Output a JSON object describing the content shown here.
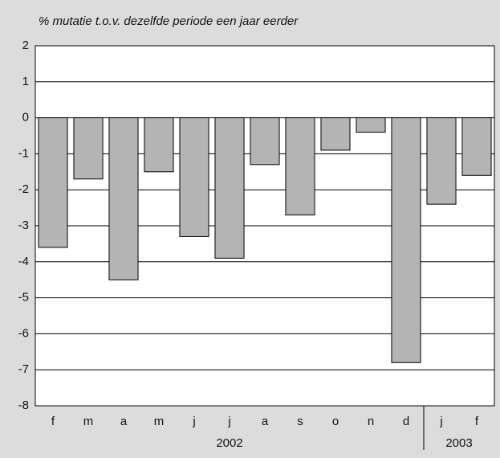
{
  "chart_data": {
    "type": "bar",
    "subtitle": "% mutatie t.o.v. dezelfde periode een jaar eerder",
    "categories": [
      "f",
      "m",
      "a",
      "m",
      "j",
      "j",
      "a",
      "s",
      "o",
      "n",
      "d",
      "j",
      "f"
    ],
    "values": [
      -3.6,
      -1.7,
      -4.5,
      -1.5,
      -3.3,
      -3.9,
      -1.3,
      -2.7,
      -0.9,
      -0.4,
      -6.8,
      -2.4,
      -1.6
    ],
    "groups": [
      {
        "label": "2002",
        "span": 11
      },
      {
        "label": "2003",
        "span": 2
      }
    ],
    "color": "#b4b4b4",
    "ylim": [
      -8,
      2
    ],
    "yticks": [
      -8,
      -7,
      -6,
      -5,
      -4,
      -3,
      -2,
      -1,
      0,
      1,
      2
    ],
    "grid": true
  }
}
